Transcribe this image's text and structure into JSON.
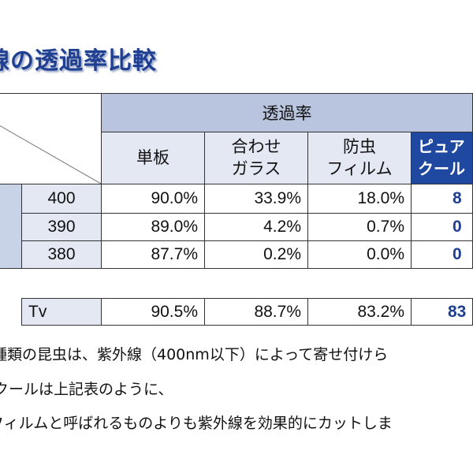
{
  "title": "線の透過率比較",
  "table": {
    "group_header": "透過率",
    "columns": [
      "単板",
      "合わせ\nガラス",
      "防虫\nフィルム",
      "ピュア\nクール"
    ],
    "rows": [
      {
        "label": "400",
        "values": [
          "90.0%",
          "33.9%",
          "18.0%",
          "8"
        ]
      },
      {
        "label": "390",
        "values": [
          "89.0%",
          "4.2%",
          "0.7%",
          "0"
        ]
      },
      {
        "label": "380",
        "values": [
          "87.7%",
          "0.2%",
          "0.0%",
          "0"
        ]
      }
    ],
    "tv": {
      "label": "Tv",
      "values": [
        "90.5%",
        "88.7%",
        "83.2%",
        "83"
      ]
    }
  },
  "body_lines": [
    "種類の昆虫は、紫外線（400nm以下）によって寄せ付けら",
    "クールは上記表のように、",
    "フィルムと呼ばれるものよりも紫外線を効果的にカットしま"
  ]
}
